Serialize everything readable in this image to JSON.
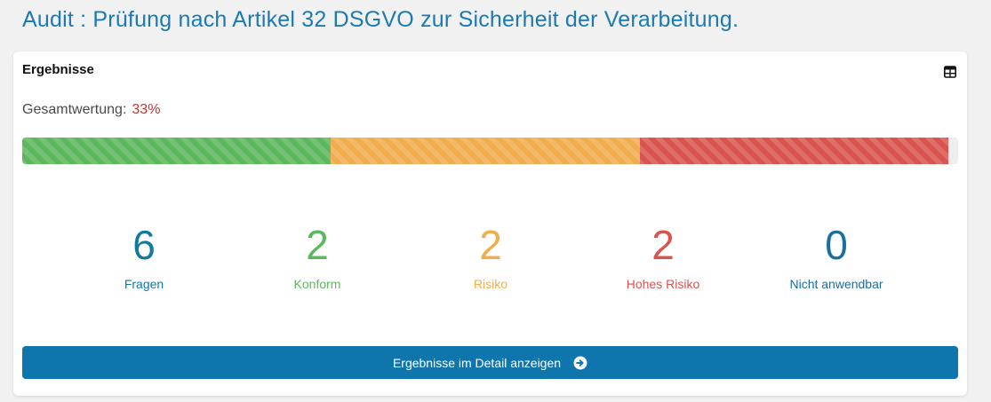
{
  "page": {
    "title": "Audit : Prüfung nach Artikel 32 DSGVO zur Sicherheit der Verarbeitung."
  },
  "card": {
    "title": "Ergebnisse",
    "table_icon": "table-icon",
    "score_label": "Gesamtwertung:",
    "score_value": "33%",
    "score_color": "#c9302c",
    "progress": [
      {
        "name": "Konform",
        "fraction": 0.33,
        "color": "#5cb85c"
      },
      {
        "name": "Risiko",
        "fraction": 0.33,
        "color": "#f0ad4e"
      },
      {
        "name": "Hohes Risiko",
        "fraction": 0.33,
        "color": "#d9534f"
      }
    ],
    "stats": [
      {
        "value": "6",
        "label": "Fragen",
        "color": "#137a9f"
      },
      {
        "value": "2",
        "label": "Konform",
        "color": "#5cb85c"
      },
      {
        "value": "2",
        "label": "Risiko",
        "color": "#f0ad4e"
      },
      {
        "value": "2",
        "label": "Hohes Risiko",
        "color": "#d9534f"
      },
      {
        "value": "0",
        "label": "Nicht anwendbar",
        "color": "#1b6ea3"
      }
    ],
    "button": {
      "label": "Ergebnisse im Detail anzeigen",
      "icon": "arrow-circle-right-icon"
    }
  }
}
